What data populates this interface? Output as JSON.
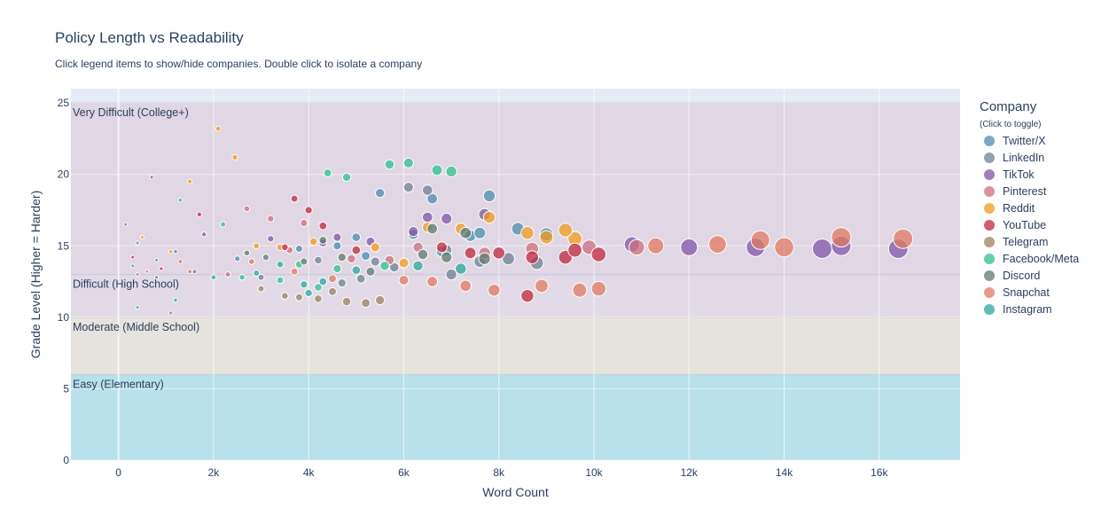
{
  "title": "Policy Length vs Readability",
  "subtitle": "Click legend items to show/hide companies. Double click to isolate a company",
  "legend": {
    "title": "Company",
    "subtitle": "(Click to toggle)"
  },
  "chart_data": {
    "type": "scatter",
    "xlabel": "Word Count",
    "ylabel": "Grade Level (Higher = Harder)",
    "xlim": [
      -1000,
      17700
    ],
    "ylim": [
      0,
      26
    ],
    "xticks": [
      0,
      2000,
      4000,
      6000,
      8000,
      10000,
      12000,
      14000,
      16000
    ],
    "xticklabels": [
      "0",
      "2k",
      "4k",
      "6k",
      "8k",
      "10k",
      "12k",
      "14k",
      "16k"
    ],
    "yticks": [
      0,
      5,
      10,
      15,
      20,
      25
    ],
    "yticklabels": [
      "0",
      "5",
      "10",
      "15",
      "20",
      "25"
    ],
    "bands": [
      {
        "label": "Easy (Elementary)",
        "y0": 0,
        "y1": 6,
        "color": "#b6e0ea"
      },
      {
        "label": "Moderate (Middle School)",
        "y0": 6,
        "y1": 10,
        "color": "#e6e3dc"
      },
      {
        "label": "Difficult (High School)",
        "y0": 10,
        "y1": 13,
        "color": "#e2dae6"
      },
      {
        "label": "Very Difficult (College+)",
        "y0": 13,
        "y1": 25,
        "color": "#e0d5e2"
      }
    ],
    "series": [
      {
        "name": "Twitter/X",
        "color": "#4c8cae",
        "points": [
          [
            150,
            16.5
          ],
          [
            400,
            15.2
          ],
          [
            1200,
            14.6
          ],
          [
            2500,
            14.1
          ],
          [
            3800,
            14.8
          ],
          [
            5000,
            15.6
          ],
          [
            5500,
            18.7
          ],
          [
            6200,
            15.8
          ],
          [
            6600,
            18.3
          ],
          [
            7400,
            15.7
          ],
          [
            7800,
            18.5
          ],
          [
            8400,
            16.2
          ],
          [
            9000,
            15.8
          ],
          [
            5200,
            14.3
          ],
          [
            4600,
            15.0
          ],
          [
            6800,
            14.6
          ],
          [
            7600,
            15.9
          ]
        ]
      },
      {
        "name": "LinkedIn",
        "color": "#6e8296",
        "points": [
          [
            300,
            13.6
          ],
          [
            800,
            14.0
          ],
          [
            1600,
            13.2
          ],
          [
            3000,
            12.8
          ],
          [
            4200,
            14.0
          ],
          [
            5100,
            12.7
          ],
          [
            5800,
            13.5
          ],
          [
            6100,
            19.1
          ],
          [
            6500,
            18.9
          ],
          [
            7000,
            13.0
          ],
          [
            7600,
            13.9
          ],
          [
            8200,
            14.1
          ],
          [
            8800,
            13.8
          ],
          [
            4700,
            12.4
          ],
          [
            5400,
            13.9
          ],
          [
            6900,
            14.7
          ]
        ]
      },
      {
        "name": "TikTok",
        "color": "#7f55a8",
        "points": [
          [
            700,
            19.8
          ],
          [
            1800,
            15.8
          ],
          [
            3200,
            15.5
          ],
          [
            4300,
            15.2
          ],
          [
            4600,
            15.6
          ],
          [
            6500,
            17.0
          ],
          [
            6900,
            16.9
          ],
          [
            7700,
            17.2
          ],
          [
            10800,
            15.1
          ],
          [
            12000,
            14.9
          ],
          [
            13400,
            14.9
          ],
          [
            14800,
            14.8
          ],
          [
            15200,
            15.0
          ],
          [
            16400,
            14.8
          ],
          [
            5300,
            15.3
          ],
          [
            6200,
            16.0
          ]
        ]
      },
      {
        "name": "Pinterest",
        "color": "#cc6f7d",
        "points": [
          [
            400,
            13.0
          ],
          [
            1300,
            13.9
          ],
          [
            2300,
            13.0
          ],
          [
            2700,
            17.6
          ],
          [
            3200,
            16.9
          ],
          [
            3600,
            14.7
          ],
          [
            4900,
            14.1
          ],
          [
            6300,
            14.9
          ],
          [
            7700,
            14.5
          ],
          [
            8700,
            14.8
          ],
          [
            9900,
            14.9
          ],
          [
            10900,
            14.9
          ],
          [
            3900,
            16.6
          ],
          [
            5700,
            14.0
          ]
        ]
      },
      {
        "name": "Reddit",
        "color": "#f09b1f",
        "points": [
          [
            500,
            15.6
          ],
          [
            1100,
            14.6
          ],
          [
            1500,
            19.5
          ],
          [
            2100,
            23.2
          ],
          [
            2450,
            21.2
          ],
          [
            2900,
            15.0
          ],
          [
            3400,
            14.9
          ],
          [
            4100,
            15.3
          ],
          [
            5400,
            14.9
          ],
          [
            6500,
            16.3
          ],
          [
            7200,
            16.2
          ],
          [
            7800,
            17.0
          ],
          [
            8600,
            15.9
          ],
          [
            9000,
            15.6
          ],
          [
            9600,
            15.5
          ],
          [
            9400,
            16.1
          ],
          [
            6000,
            13.8
          ]
        ]
      },
      {
        "name": "YouTube",
        "color": "#c0283d",
        "points": [
          [
            300,
            14.2
          ],
          [
            900,
            13.4
          ],
          [
            1700,
            17.2
          ],
          [
            3500,
            14.9
          ],
          [
            3700,
            18.3
          ],
          [
            4000,
            17.5
          ],
          [
            4300,
            16.4
          ],
          [
            5000,
            14.7
          ],
          [
            6800,
            14.9
          ],
          [
            7400,
            14.5
          ],
          [
            8000,
            14.5
          ],
          [
            8600,
            11.5
          ],
          [
            8700,
            14.2
          ],
          [
            9400,
            14.2
          ],
          [
            10100,
            14.4
          ],
          [
            9600,
            14.7
          ]
        ]
      },
      {
        "name": "Telegram",
        "color": "#9c8160",
        "points": [
          [
            1100,
            10.3
          ],
          [
            3500,
            11.5
          ],
          [
            3800,
            11.4
          ],
          [
            4200,
            11.3
          ],
          [
            4800,
            11.1
          ],
          [
            5200,
            11.0
          ],
          [
            5500,
            11.2
          ],
          [
            3000,
            12.0
          ],
          [
            4500,
            11.8
          ]
        ]
      },
      {
        "name": "Facebook/Meta",
        "color": "#2fc08f",
        "points": [
          [
            1300,
            18.2
          ],
          [
            2200,
            16.5
          ],
          [
            2600,
            12.8
          ],
          [
            3800,
            13.7
          ],
          [
            4200,
            12.1
          ],
          [
            4400,
            20.1
          ],
          [
            4800,
            19.8
          ],
          [
            5700,
            20.7
          ],
          [
            6100,
            20.8
          ],
          [
            6700,
            20.3
          ],
          [
            7000,
            20.2
          ],
          [
            5600,
            13.6
          ],
          [
            4600,
            13.4
          ],
          [
            3400,
            12.6
          ]
        ]
      },
      {
        "name": "Discord",
        "color": "#5e7a6c",
        "points": [
          [
            800,
            12.8
          ],
          [
            2700,
            14.5
          ],
          [
            3100,
            14.2
          ],
          [
            3900,
            13.9
          ],
          [
            4700,
            14.2
          ],
          [
            5300,
            13.2
          ],
          [
            6400,
            14.4
          ],
          [
            6900,
            14.2
          ],
          [
            7300,
            15.9
          ],
          [
            7700,
            14.1
          ],
          [
            6600,
            16.2
          ],
          [
            4300,
            15.4
          ]
        ]
      },
      {
        "name": "Snapchat",
        "color": "#e07a60",
        "points": [
          [
            600,
            13.2
          ],
          [
            1500,
            13.2
          ],
          [
            2800,
            13.9
          ],
          [
            3700,
            13.2
          ],
          [
            4500,
            12.7
          ],
          [
            6000,
            12.6
          ],
          [
            6600,
            12.5
          ],
          [
            7300,
            12.2
          ],
          [
            7900,
            11.9
          ],
          [
            8900,
            12.2
          ],
          [
            9700,
            11.9
          ],
          [
            10100,
            12.0
          ],
          [
            12600,
            15.1
          ],
          [
            13500,
            15.4
          ],
          [
            14000,
            14.9
          ],
          [
            15200,
            15.6
          ],
          [
            16500,
            15.5
          ],
          [
            11300,
            15.0
          ]
        ]
      },
      {
        "name": "Instagram",
        "color": "#2aa89a",
        "points": [
          [
            400,
            10.7
          ],
          [
            1200,
            11.2
          ],
          [
            2000,
            12.8
          ],
          [
            2900,
            13.1
          ],
          [
            3400,
            13.7
          ],
          [
            3900,
            12.3
          ],
          [
            4300,
            12.5
          ],
          [
            5000,
            13.3
          ],
          [
            6300,
            13.6
          ],
          [
            7200,
            13.4
          ],
          [
            4000,
            11.7
          ]
        ]
      }
    ]
  }
}
